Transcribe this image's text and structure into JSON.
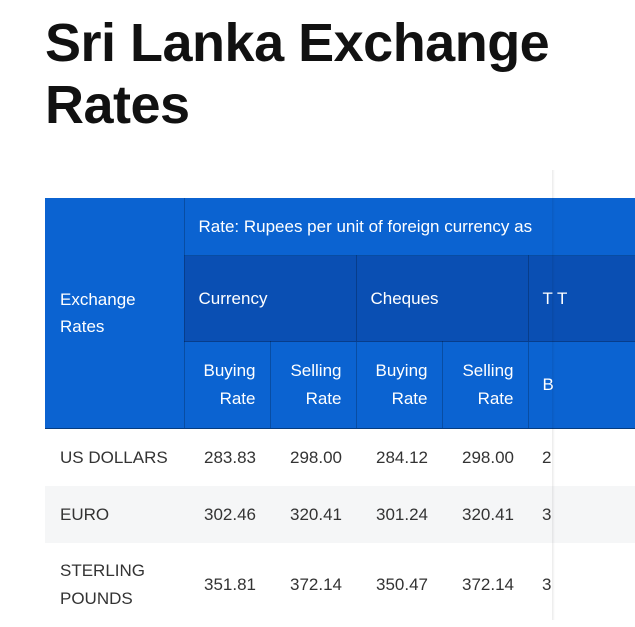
{
  "page": {
    "title": "Sri Lanka Exchange Rates"
  },
  "table": {
    "corner_header": "Exchange Rates",
    "rate_header": "Rate: Rupees per unit of foreign currency as",
    "groups": [
      "Currency",
      "Cheques",
      "T T"
    ],
    "subheaders": {
      "buying": "Buying Rate",
      "selling": "Selling Rate",
      "partial": "B"
    },
    "rows": [
      {
        "name": "US DOLLARS",
        "values": [
          "283.83",
          "298.00",
          "284.12",
          "298.00"
        ],
        "partial": "2"
      },
      {
        "name": "EURO",
        "values": [
          "302.46",
          "320.41",
          "301.24",
          "320.41"
        ],
        "partial": "3"
      },
      {
        "name": "STERLING POUNDS",
        "values": [
          "351.81",
          "372.14",
          "350.47",
          "372.14"
        ],
        "partial": "3"
      }
    ]
  }
}
